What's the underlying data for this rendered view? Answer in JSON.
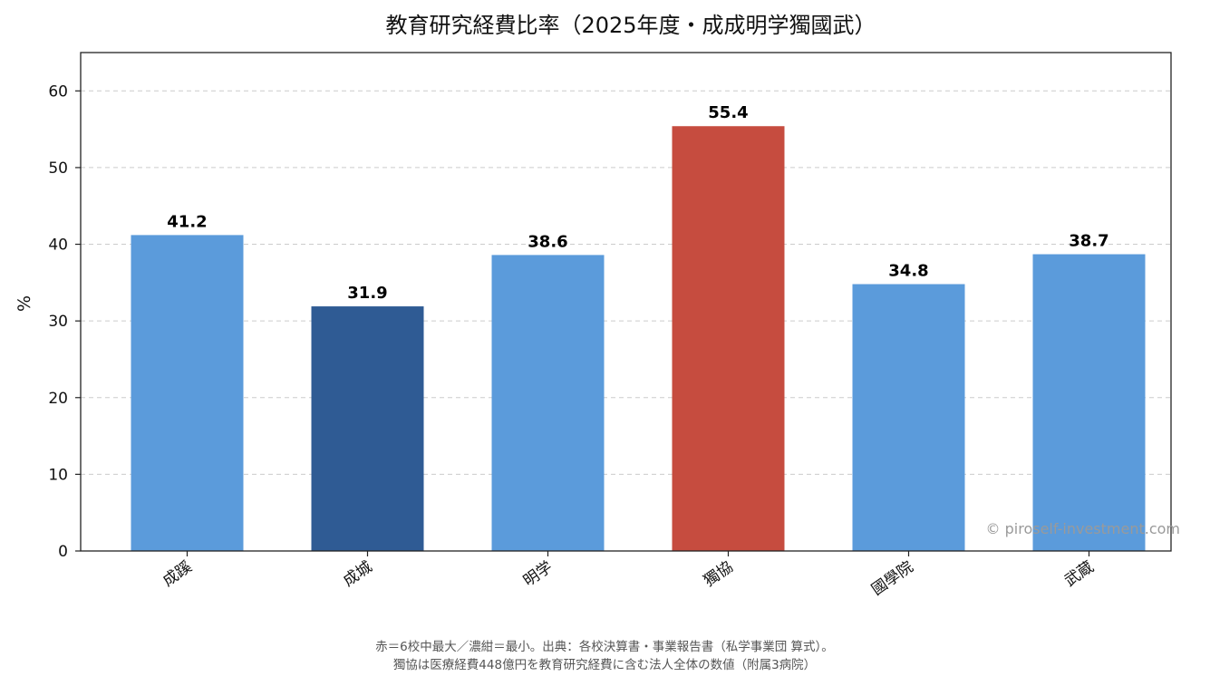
{
  "chart_data": {
    "type": "bar",
    "title": "教育研究経費比率（2025年度・成成明学獨國武）",
    "xlabel": "",
    "ylabel": "%",
    "categories": [
      "成蹊",
      "成城",
      "明学",
      "獨協",
      "國學院",
      "武蔵"
    ],
    "values": [
      41.2,
      31.9,
      38.6,
      55.4,
      34.8,
      38.7
    ],
    "value_labels": [
      "41.2",
      "31.9",
      "38.6",
      "55.4",
      "34.8",
      "38.7"
    ],
    "bar_roles": [
      "normal",
      "min",
      "normal",
      "max",
      "normal",
      "normal"
    ],
    "colors": {
      "normal": "#5b9bdb",
      "min": "#2f5b94",
      "max": "#c64c3f",
      "grid": "#cccccc",
      "axis": "#222222"
    },
    "ylim": [
      0,
      65
    ],
    "yticks": [
      0,
      10,
      20,
      30,
      40,
      50,
      60
    ],
    "ytick_labels": [
      "0",
      "10",
      "20",
      "30",
      "40",
      "50",
      "60"
    ],
    "grid": "y-dashed",
    "legend": "none",
    "watermark": "© piroself-investment.com",
    "footnotes": [
      "赤＝6校中最大／濃紺＝最小。出典：各校決算書・事業報告書（私学事業団 算式）。",
      "獨協は医療経費448億円を教育研究経費に含む法人全体の数値（附属3病院）"
    ]
  }
}
